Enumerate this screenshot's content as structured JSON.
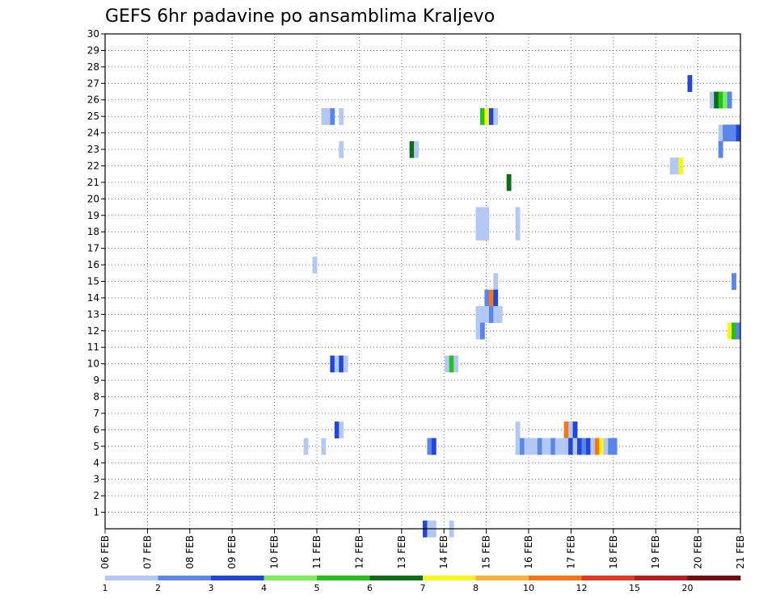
{
  "chart_data": {
    "type": "heatmap",
    "title": "GEFS 6hr padavine po ansamblima Kraljevo",
    "xlabel": "",
    "ylabel": "",
    "x_tick_labels": [
      "06 FEB",
      "07 FEB",
      "08 FEB",
      "09 FEB",
      "10 FEB",
      "11 FEB",
      "12 FEB",
      "13 FEB",
      "14 FEB",
      "15 FEB",
      "16 FEB",
      "17 FEB",
      "18 FEB",
      "19 FEB",
      "20 FEB",
      "21 FEB"
    ],
    "x_range_days": [
      0,
      15
    ],
    "y_tick_labels": [
      "1",
      "2",
      "3",
      "4",
      "5",
      "6",
      "7",
      "8",
      "9",
      "10",
      "11",
      "12",
      "13",
      "14",
      "15",
      "16",
      "17",
      "18",
      "19",
      "20",
      "21",
      "22",
      "23",
      "24",
      "25",
      "26",
      "27",
      "28",
      "29",
      "30"
    ],
    "y_range": [
      0,
      30
    ],
    "grid": true,
    "step_hours": 6,
    "legend": {
      "labels": [
        "1",
        "2",
        "3",
        "4",
        "5",
        "6",
        "7",
        "8",
        "10",
        "12",
        "15",
        "20"
      ],
      "colors": [
        "#b4c8f4",
        "#5a85ea",
        "#2346da",
        "#79ed5c",
        "#21c21b",
        "#0c6e14",
        "#faf51c",
        "#fab337",
        "#fa7514",
        "#e8351d",
        "#b81c1c",
        "#720e0e"
      ]
    },
    "series_note": "cells: [member, forecast step (6h), color level index]",
    "cells": [
      [
        27,
        132,
        2
      ],
      [
        26,
        137,
        0
      ],
      [
        26,
        138,
        5
      ],
      [
        26,
        139,
        4
      ],
      [
        26,
        140,
        3
      ],
      [
        26,
        141,
        1
      ],
      [
        25,
        49,
        0
      ],
      [
        25,
        50,
        0
      ],
      [
        25,
        51,
        1
      ],
      [
        25,
        53,
        0
      ],
      [
        25,
        85,
        4
      ],
      [
        25,
        86,
        6
      ],
      [
        25,
        87,
        2
      ],
      [
        25,
        88,
        0
      ],
      [
        24,
        139,
        0
      ],
      [
        24,
        140,
        1
      ],
      [
        24,
        141,
        1
      ],
      [
        24,
        142,
        1
      ],
      [
        24,
        143,
        2
      ],
      [
        23,
        53,
        0
      ],
      [
        23,
        69,
        5
      ],
      [
        23,
        70,
        0
      ],
      [
        23,
        139,
        1
      ],
      [
        22,
        128,
        0
      ],
      [
        22,
        129,
        0
      ],
      [
        22,
        130,
        6
      ],
      [
        21,
        91,
        5
      ],
      [
        19,
        84,
        0
      ],
      [
        19,
        85,
        0
      ],
      [
        19,
        86,
        0
      ],
      [
        19,
        93,
        0
      ],
      [
        18,
        84,
        0
      ],
      [
        18,
        85,
        0
      ],
      [
        18,
        86,
        0
      ],
      [
        18,
        93,
        0
      ],
      [
        16,
        47,
        0
      ],
      [
        15,
        88,
        0
      ],
      [
        15,
        142,
        1
      ],
      [
        14,
        86,
        1
      ],
      [
        14,
        87,
        8
      ],
      [
        14,
        88,
        2
      ],
      [
        13,
        84,
        0
      ],
      [
        13,
        85,
        0
      ],
      [
        13,
        86,
        0
      ],
      [
        13,
        87,
        1
      ],
      [
        13,
        88,
        0
      ],
      [
        13,
        89,
        0
      ],
      [
        12,
        84,
        0
      ],
      [
        12,
        85,
        1
      ],
      [
        12,
        141,
        6
      ],
      [
        12,
        142,
        4
      ],
      [
        12,
        143,
        1
      ],
      [
        10,
        51,
        2
      ],
      [
        10,
        52,
        0
      ],
      [
        10,
        53,
        2
      ],
      [
        10,
        54,
        0
      ],
      [
        10,
        77,
        0
      ],
      [
        10,
        78,
        4
      ],
      [
        10,
        79,
        0
      ],
      [
        6,
        52,
        2
      ],
      [
        6,
        53,
        0
      ],
      [
        6,
        93,
        0
      ],
      [
        6,
        104,
        8
      ],
      [
        6,
        105,
        0
      ],
      [
        6,
        106,
        2
      ],
      [
        5,
        45,
        0
      ],
      [
        5,
        49,
        0
      ],
      [
        5,
        73,
        1
      ],
      [
        5,
        74,
        2
      ],
      [
        5,
        93,
        0
      ],
      [
        5,
        94,
        1
      ],
      [
        5,
        95,
        0
      ],
      [
        5,
        96,
        0
      ],
      [
        5,
        97,
        0
      ],
      [
        5,
        98,
        1
      ],
      [
        5,
        99,
        0
      ],
      [
        5,
        100,
        0
      ],
      [
        5,
        101,
        1
      ],
      [
        5,
        102,
        0
      ],
      [
        5,
        103,
        0
      ],
      [
        5,
        104,
        0
      ],
      [
        5,
        105,
        2
      ],
      [
        5,
        106,
        0
      ],
      [
        5,
        107,
        2
      ],
      [
        5,
        108,
        1
      ],
      [
        5,
        109,
        2
      ],
      [
        5,
        110,
        0
      ],
      [
        5,
        111,
        8
      ],
      [
        5,
        112,
        6
      ],
      [
        5,
        113,
        0
      ],
      [
        5,
        114,
        1
      ],
      [
        5,
        115,
        1
      ],
      [
        0,
        72,
        2
      ],
      [
        0,
        73,
        0
      ],
      [
        0,
        74,
        0
      ],
      [
        0,
        78,
        0
      ]
    ]
  }
}
